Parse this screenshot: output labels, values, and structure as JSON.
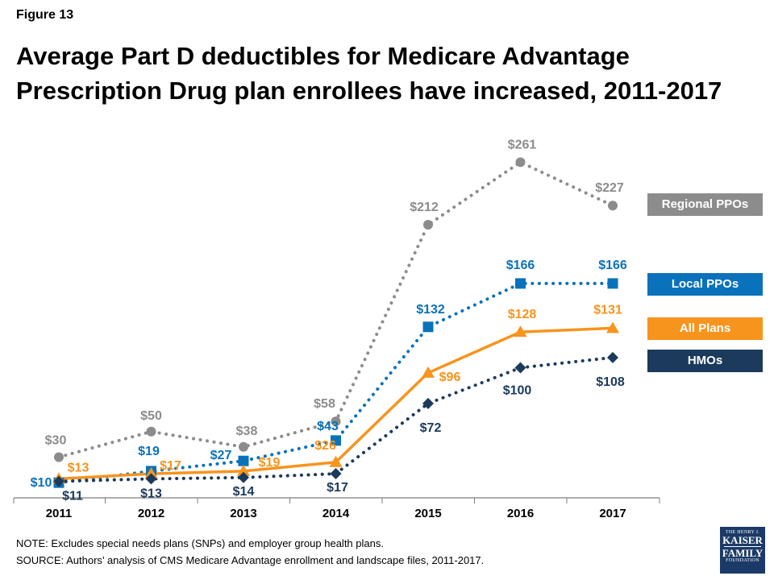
{
  "figure_label": "Figure 13",
  "title_line1": "Average Part D deductibles for Medicare Advantage",
  "title_line2": "Prescription Drug plan enrollees have increased, 2011-2017",
  "note": "NOTE: Excludes special needs plans (SNPs) and employer group health plans.",
  "source": "SOURCE: Authors’ analysis of CMS Medicare Advantage enrollment and landscape files, 2011-2017.",
  "logo": {
    "line1": "THE HENRY J.",
    "line2": "KAISER",
    "line3": "FAMILY",
    "line4": "FOUNDATION"
  },
  "chart_data": {
    "type": "line",
    "categories": [
      "2011",
      "2012",
      "2013",
      "2014",
      "2015",
      "2016",
      "2017"
    ],
    "grid": false,
    "legend_placement": "right",
    "series": [
      {
        "name": "Regional PPOs",
        "values": [
          30,
          50,
          38,
          58,
          212,
          261,
          227
        ],
        "labels": [
          "$30",
          "$50",
          "$38",
          "$58",
          "$212",
          "$261",
          "$227"
        ],
        "color": "#8c8c8c",
        "marker": "circle",
        "style": "dotted"
      },
      {
        "name": "Local PPOs",
        "values": [
          10,
          19,
          27,
          43,
          132,
          166,
          166
        ],
        "labels": [
          "$10",
          "$19",
          "$27",
          "$43",
          "$132",
          "$166",
          "$166"
        ],
        "color": "#0a72ba",
        "marker": "square",
        "style": "dotted"
      },
      {
        "name": "All Plans",
        "values": [
          13,
          17,
          19,
          26,
          96,
          128,
          131
        ],
        "labels": [
          "$13",
          "$17",
          "$19",
          "$26",
          "$96",
          "$128",
          "$131"
        ],
        "color": "#f7941d",
        "marker": "triangle",
        "style": "solid"
      },
      {
        "name": "HMOs",
        "values": [
          11,
          13,
          14,
          17,
          72,
          100,
          108
        ],
        "labels": [
          "$11",
          "$13",
          "$14",
          "$17",
          "$72",
          "$100",
          "$108"
        ],
        "color": "#1b3a5c",
        "marker": "diamond",
        "style": "dotted"
      }
    ]
  }
}
